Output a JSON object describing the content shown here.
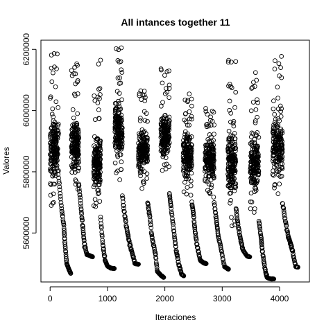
{
  "chart_data": {
    "type": "scatter",
    "title": "All intances together 11",
    "xlabel": "Iteraciones",
    "ylabel": "Valores",
    "xlim": [
      -160,
      4520
    ],
    "ylim": [
      5440000,
      6230000
    ],
    "x_ticks": [
      0,
      1000,
      2000,
      3000,
      4000
    ],
    "x_tick_labels": [
      "0",
      "1000",
      "2000",
      "3000",
      "4000"
    ],
    "y_ticks": [
      5600000,
      5800000,
      6000000,
      6200000
    ],
    "y_tick_labels": [
      "5600000",
      "5800000",
      "6000000",
      "6200000"
    ],
    "grid": false,
    "marker": "open-circle",
    "point_color": "#000000",
    "segments": [
      {
        "x_start": 0,
        "x_peak_end": 150,
        "peak_min": 5690000,
        "peak_max": 6205000,
        "core_min": 5750000,
        "core_max": 6000000,
        "tail": [
          [
            150,
            5780000
          ],
          [
            200,
            5680000
          ],
          [
            240,
            5620000
          ],
          [
            260,
            5560000
          ],
          [
            290,
            5500000
          ],
          [
            330,
            5480000
          ],
          [
            360,
            5468000
          ]
        ]
      },
      {
        "x_start": 370,
        "x_peak_end": 500,
        "peak_min": 5720000,
        "peak_max": 6160000,
        "core_min": 5780000,
        "core_max": 6000000,
        "tail": [
          [
            500,
            5760000
          ],
          [
            540,
            5680000
          ],
          [
            570,
            5620000
          ],
          [
            600,
            5560000
          ],
          [
            640,
            5530000
          ],
          [
            700,
            5525000
          ],
          [
            740,
            5522000
          ]
        ]
      },
      {
        "x_start": 760,
        "x_peak_end": 880,
        "peak_min": 5630000,
        "peak_max": 6180000,
        "core_min": 5720000,
        "core_max": 5940000,
        "tail": [
          [
            880,
            5650000
          ],
          [
            920,
            5560000
          ],
          [
            960,
            5510000
          ],
          [
            1000,
            5492000
          ],
          [
            1060,
            5485000
          ],
          [
            1120,
            5484000
          ]
        ]
      },
      {
        "x_start": 1130,
        "x_peak_end": 1260,
        "peak_min": 5760000,
        "peak_max": 6215000,
        "core_min": 5820000,
        "core_max": 6050000,
        "tail": [
          [
            1260,
            5720000
          ],
          [
            1300,
            5660000
          ],
          [
            1340,
            5610000
          ],
          [
            1380,
            5570000
          ],
          [
            1430,
            5535000
          ],
          [
            1480,
            5500000
          ],
          [
            1540,
            5498000
          ]
        ]
      },
      {
        "x_start": 1540,
        "x_peak_end": 1700,
        "peak_min": 5730000,
        "peak_max": 6070000,
        "core_min": 5780000,
        "core_max": 5960000,
        "tail": [
          [
            1700,
            5700000
          ],
          [
            1740,
            5650000
          ],
          [
            1780,
            5580000
          ],
          [
            1830,
            5540000
          ],
          [
            1870,
            5475000
          ],
          [
            1930,
            5462000
          ],
          [
            1980,
            5455000
          ]
        ]
      },
      {
        "x_start": 1930,
        "x_peak_end": 2080,
        "peak_min": 5800000,
        "peak_max": 6150000,
        "core_min": 5830000,
        "core_max": 6010000,
        "tail": [
          [
            2080,
            5730000
          ],
          [
            2110,
            5680000
          ],
          [
            2160,
            5600000
          ],
          [
            2200,
            5540000
          ],
          [
            2240,
            5500000
          ],
          [
            2290,
            5465000
          ],
          [
            2330,
            5460000
          ]
        ]
      },
      {
        "x_start": 2320,
        "x_peak_end": 2470,
        "peak_min": 5720000,
        "peak_max": 6060000,
        "core_min": 5760000,
        "core_max": 5950000,
        "tail": [
          [
            2470,
            5700000
          ],
          [
            2500,
            5660000
          ],
          [
            2530,
            5600000
          ],
          [
            2570,
            5550000
          ],
          [
            2620,
            5510000
          ],
          [
            2680,
            5502000
          ],
          [
            2720,
            5500000
          ]
        ]
      },
      {
        "x_start": 2700,
        "x_peak_end": 2860,
        "peak_min": 5700000,
        "peak_max": 6020000,
        "core_min": 5740000,
        "core_max": 5940000,
        "tail": [
          [
            2860,
            5700000
          ],
          [
            2900,
            5640000
          ],
          [
            2930,
            5590000
          ],
          [
            2980,
            5550000
          ],
          [
            3040,
            5490000
          ],
          [
            3090,
            5484000
          ],
          [
            3110,
            5482000
          ]
        ]
      },
      {
        "x_start": 3100,
        "x_peak_end": 3240,
        "peak_min": 5620000,
        "peak_max": 6170000,
        "core_min": 5700000,
        "core_max": 5960000,
        "tail": [
          [
            3240,
            5680000
          ],
          [
            3280,
            5620000
          ],
          [
            3320,
            5580000
          ],
          [
            3360,
            5545000
          ],
          [
            3430,
            5525000
          ],
          [
            3480,
            5522000
          ]
        ]
      },
      {
        "x_start": 3490,
        "x_peak_end": 3640,
        "peak_min": 5650000,
        "peak_max": 6150000,
        "core_min": 5710000,
        "core_max": 5950000,
        "tail": [
          [
            3640,
            5640000
          ],
          [
            3680,
            5580000
          ],
          [
            3700,
            5540000
          ],
          [
            3740,
            5490000
          ],
          [
            3780,
            5455000
          ],
          [
            3840,
            5450000
          ],
          [
            3900,
            5450000
          ]
        ]
      },
      {
        "x_start": 3880,
        "x_peak_end": 4050,
        "peak_min": 5720000,
        "peak_max": 6190000,
        "core_min": 5760000,
        "core_max": 6000000,
        "tail": [
          [
            4050,
            5700000
          ],
          [
            4100,
            5640000
          ],
          [
            4150,
            5590000
          ],
          [
            4190,
            5565000
          ],
          [
            4230,
            5540000
          ],
          [
            4280,
            5490000
          ],
          [
            4320,
            5488000
          ]
        ]
      }
    ]
  }
}
